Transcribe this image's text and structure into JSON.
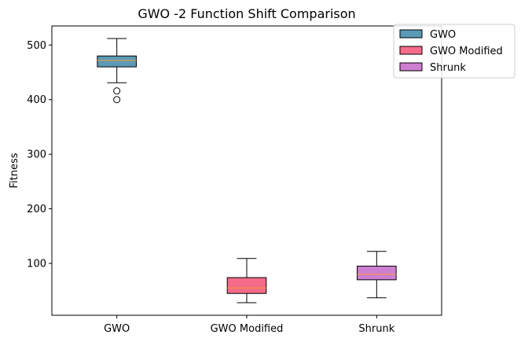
{
  "chart_data": {
    "type": "box",
    "title": "GWO -2 Function Shift Comparison",
    "xlabel": "",
    "ylabel": "Fitness",
    "ylim": [
      5,
      535
    ],
    "yticks": [
      100,
      200,
      300,
      400,
      500
    ],
    "grid": false,
    "legend_position": "top-right",
    "categories": [
      "GWO",
      "GWO Modified",
      "Shrunk"
    ],
    "series": [
      {
        "name": "GWO",
        "color": "#5b9ab6",
        "whisker_low": 431,
        "q1": 460,
        "median": 472,
        "q3": 480,
        "whisker_high": 512,
        "outliers": [
          416,
          400
        ]
      },
      {
        "name": "GWO Modified",
        "color": "#f56b8a",
        "whisker_low": 28,
        "q1": 45,
        "median": 55,
        "q3": 74,
        "whisker_high": 109,
        "outliers": []
      },
      {
        "name": "Shrunk",
        "color": "#cf7fd1",
        "whisker_low": 37,
        "q1": 70,
        "median": 80,
        "q3": 95,
        "whisker_high": 122,
        "outliers": []
      }
    ],
    "median_color": "#f39c2f"
  }
}
